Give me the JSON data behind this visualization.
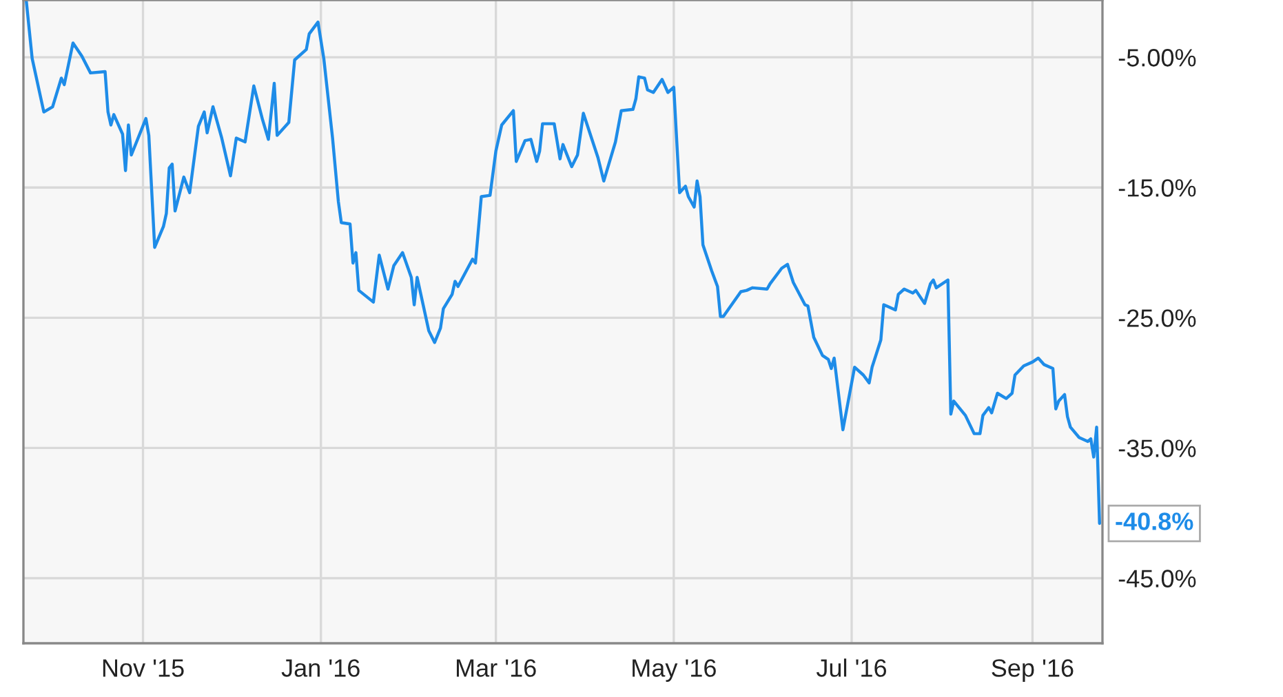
{
  "chart_data": {
    "type": "line",
    "x": [
      "2015-09-22",
      "2015-09-24",
      "2015-09-28",
      "2015-10-01",
      "2015-10-04",
      "2015-10-05",
      "2015-10-08",
      "2015-10-11",
      "2015-10-14",
      "2015-10-19",
      "2015-10-20",
      "2015-10-21",
      "2015-10-22",
      "2015-10-25",
      "2015-10-26",
      "2015-10-27",
      "2015-10-28",
      "2015-11-02",
      "2015-11-03",
      "2015-11-05",
      "2015-11-08",
      "2015-11-09",
      "2015-11-10",
      "2015-11-11",
      "2015-11-12",
      "2015-11-15",
      "2015-11-17",
      "2015-11-20",
      "2015-11-22",
      "2015-11-23",
      "2015-11-25",
      "2015-11-28",
      "2015-12-01",
      "2015-12-03",
      "2015-12-06",
      "2015-12-09",
      "2015-12-12",
      "2015-12-14",
      "2015-12-16",
      "2015-12-17",
      "2015-12-21",
      "2015-12-23",
      "2015-12-27",
      "2015-12-28",
      "2015-12-31",
      "2016-01-02",
      "2016-01-05",
      "2016-01-07",
      "2016-01-08",
      "2016-01-11",
      "2016-01-12",
      "2016-01-13",
      "2016-01-14",
      "2016-01-19",
      "2016-01-21",
      "2016-01-24",
      "2016-01-26",
      "2016-01-29",
      "2016-02-01",
      "2016-02-02",
      "2016-02-03",
      "2016-02-07",
      "2016-02-09",
      "2016-02-11",
      "2016-02-12",
      "2016-02-15",
      "2016-02-16",
      "2016-02-17",
      "2016-02-22",
      "2016-02-23",
      "2016-02-25",
      "2016-02-28",
      "2016-03-01",
      "2016-03-03",
      "2016-03-07",
      "2016-03-08",
      "2016-03-11",
      "2016-03-13",
      "2016-03-15",
      "2016-03-16",
      "2016-03-17",
      "2016-03-21",
      "2016-03-23",
      "2016-03-24",
      "2016-03-27",
      "2016-03-29",
      "2016-03-31",
      "2016-04-05",
      "2016-04-07",
      "2016-04-11",
      "2016-04-13",
      "2016-04-17",
      "2016-04-18",
      "2016-04-19",
      "2016-04-21",
      "2016-04-22",
      "2016-04-24",
      "2016-04-27",
      "2016-04-29",
      "2016-05-01",
      "2016-05-03",
      "2016-05-05",
      "2016-05-06",
      "2016-05-08",
      "2016-05-09",
      "2016-05-10",
      "2016-05-11",
      "2016-05-14",
      "2016-05-16",
      "2016-05-17",
      "2016-05-18",
      "2016-05-24",
      "2016-05-26",
      "2016-05-28",
      "2016-06-02",
      "2016-06-03",
      "2016-06-07",
      "2016-06-09",
      "2016-06-11",
      "2016-06-15",
      "2016-06-16",
      "2016-06-18",
      "2016-06-21",
      "2016-06-23",
      "2016-06-24",
      "2016-06-25",
      "2016-06-28",
      "2016-07-02",
      "2016-07-05",
      "2016-07-07",
      "2016-07-08",
      "2016-07-11",
      "2016-07-12",
      "2016-07-13",
      "2016-07-16",
      "2016-07-17",
      "2016-07-19",
      "2016-07-22",
      "2016-07-23",
      "2016-07-26",
      "2016-07-28",
      "2016-07-29",
      "2016-07-30",
      "2016-08-03",
      "2016-08-04",
      "2016-08-05",
      "2016-08-09",
      "2016-08-12",
      "2016-08-14",
      "2016-08-15",
      "2016-08-17",
      "2016-08-18",
      "2016-08-20",
      "2016-08-23",
      "2016-08-25",
      "2016-08-26",
      "2016-08-29",
      "2016-09-01",
      "2016-09-03",
      "2016-09-05",
      "2016-09-08",
      "2016-09-09",
      "2016-09-10",
      "2016-09-12",
      "2016-09-13",
      "2016-09-14",
      "2016-09-17",
      "2016-09-20",
      "2016-09-21",
      "2016-09-22",
      "2016-09-23",
      "2016-09-24"
    ],
    "series": [
      {
        "color": "#1e8ce8",
        "values": [
          -0.7,
          -5.1,
          -9.2,
          -8.8,
          -6.6,
          -7.1,
          -3.9,
          -4.9,
          -6.2,
          -6.1,
          -9.2,
          -10.2,
          -9.4,
          -10.9,
          -13.7,
          -10.2,
          -12.5,
          -9.7,
          -11.0,
          -19.6,
          -18.0,
          -17.0,
          -13.5,
          -13.2,
          -16.8,
          -14.2,
          -15.4,
          -10.3,
          -9.2,
          -10.8,
          -8.8,
          -11.2,
          -14.1,
          -11.2,
          -11.5,
          -7.2,
          -9.8,
          -11.3,
          -7.0,
          -11.0,
          -10.0,
          -5.2,
          -4.4,
          -3.2,
          -2.3,
          -5.1,
          -11.2,
          -16.1,
          -17.7,
          -17.8,
          -20.8,
          -20.0,
          -22.9,
          -23.8,
          -20.2,
          -22.8,
          -21.0,
          -20.0,
          -21.9,
          -24.0,
          -21.9,
          -26.0,
          -26.9,
          -25.8,
          -24.3,
          -23.2,
          -22.2,
          -22.6,
          -20.5,
          -20.8,
          -15.7,
          -15.6,
          -12.2,
          -10.2,
          -9.1,
          -13.0,
          -11.4,
          -11.3,
          -13.0,
          -12.2,
          -10.1,
          -10.1,
          -12.8,
          -11.7,
          -13.4,
          -12.5,
          -9.3,
          -12.7,
          -14.5,
          -11.5,
          -9.1,
          -9.0,
          -8.2,
          -6.5,
          -6.6,
          -7.5,
          -7.7,
          -6.7,
          -7.7,
          -7.3,
          -15.4,
          -14.9,
          -15.7,
          -16.5,
          -14.5,
          -15.7,
          -19.4,
          -21.4,
          -22.6,
          -24.9,
          -24.9,
          -23.0,
          -22.9,
          -22.7,
          -22.8,
          -22.4,
          -21.2,
          -20.9,
          -22.3,
          -24.0,
          -24.1,
          -26.5,
          -27.9,
          -28.2,
          -28.9,
          -28.1,
          -33.6,
          -28.8,
          -29.4,
          -30.0,
          -28.8,
          -26.7,
          -24.0,
          -24.1,
          -24.4,
          -23.2,
          -22.8,
          -23.1,
          -22.9,
          -23.9,
          -22.4,
          -22.1,
          -22.7,
          -22.1,
          -32.4,
          -31.4,
          -32.5,
          -33.9,
          -33.9,
          -32.5,
          -31.9,
          -32.3,
          -30.8,
          -31.2,
          -30.8,
          -29.4,
          -28.7,
          -28.4,
          -28.1,
          -28.6,
          -28.9,
          -32.0,
          -31.4,
          -30.9,
          -32.6,
          -33.4,
          -34.2,
          -34.5,
          -34.3,
          -35.7,
          -33.4,
          -40.8
        ]
      }
    ],
    "xlim": [
      "2015-09-21",
      "2016-09-25"
    ],
    "xticks": [
      {
        "value": "2015-11-01",
        "label": "Nov '15"
      },
      {
        "value": "2016-01-01",
        "label": "Jan '16"
      },
      {
        "value": "2016-03-01",
        "label": "Mar '16"
      },
      {
        "value": "2016-05-01",
        "label": "May '16"
      },
      {
        "value": "2016-07-01",
        "label": "Jul '16"
      },
      {
        "value": "2016-09-01",
        "label": "Sep '16"
      }
    ],
    "ylim": [
      -50.0,
      -0.6
    ],
    "yticks": [
      {
        "value": -5,
        "label": "-5.00%"
      },
      {
        "value": -15,
        "label": "-15.0%"
      },
      {
        "value": -25,
        "label": "-25.0%"
      },
      {
        "value": -35,
        "label": "-35.0%"
      },
      {
        "value": -45,
        "label": "-45.0%"
      }
    ],
    "annotations": [
      {
        "text": "-40.8%",
        "x": "2016-09-24",
        "y": -40.8
      }
    ],
    "grid": true,
    "legend": false,
    "marker": "none",
    "line_style": "solid"
  }
}
